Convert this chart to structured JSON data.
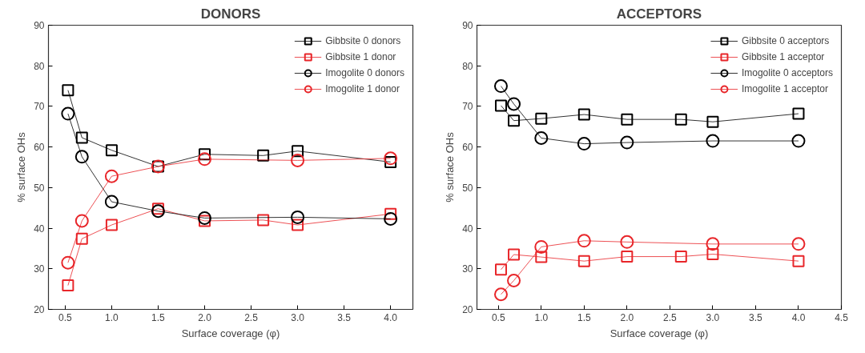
{
  "chart_data": [
    {
      "type": "line",
      "title": "DONORS",
      "xlabel": "Surface coverage (φ)",
      "ylabel": "% surface OHs",
      "xlim": [
        0.32,
        4.24
      ],
      "ylim": [
        20,
        90
      ],
      "xticks": [
        {
          "value": 0.5,
          "label": "0.5"
        },
        {
          "value": 1,
          "label": "1.0"
        },
        {
          "value": 1.5,
          "label": "1.5"
        },
        {
          "value": 2,
          "label": "2.0"
        },
        {
          "value": 2.5,
          "label": "2.5"
        },
        {
          "value": 3,
          "label": "3.0"
        },
        {
          "value": 3.5,
          "label": "3.5"
        },
        {
          "value": 4,
          "label": "4.0"
        }
      ],
      "yticks": [
        20,
        30,
        40,
        50,
        60,
        70,
        80,
        90
      ],
      "grid": false,
      "legend": "top right",
      "series": [
        {
          "name": "Gibbsite 0 donors",
          "color": "#000000",
          "marker": "square",
          "x": [
            0.53,
            0.68,
            1.0,
            1.5,
            2.0,
            2.63,
            3.0,
            4.0
          ],
          "values": [
            74,
            62.3,
            59.2,
            55.2,
            58.2,
            57.9,
            59,
            56.3
          ]
        },
        {
          "name": "Gibbsite 1 donor",
          "color": "#e8262a",
          "marker": "square",
          "x": [
            0.53,
            0.68,
            1.0,
            1.5,
            2.0,
            2.63,
            3.0,
            4.0
          ],
          "values": [
            25.9,
            37.4,
            40.8,
            44.8,
            41.8,
            42,
            40.8,
            43.5
          ]
        },
        {
          "name": "Imogolite 0 donors",
          "color": "#000000",
          "marker": "circle",
          "x": [
            0.53,
            0.68,
            1.0,
            1.5,
            2.0,
            3.0,
            4.0
          ],
          "values": [
            68.2,
            57.6,
            46.5,
            44.2,
            42.5,
            42.7,
            42.3
          ]
        },
        {
          "name": "Imogolite 1 donor",
          "color": "#e8262a",
          "marker": "circle",
          "x": [
            0.53,
            0.68,
            1.0,
            1.5,
            2.0,
            3.0,
            4.0
          ],
          "values": [
            31.5,
            41.8,
            52.8,
            55.2,
            57,
            56.7,
            57.2
          ]
        }
      ]
    },
    {
      "type": "line",
      "title": "ACCEPTORS",
      "xlabel": "Surface coverage (φ)",
      "ylabel": "% surface OHs",
      "xlim": [
        0.25,
        4.5
      ],
      "ylim": [
        20,
        90
      ],
      "xticks": [
        {
          "value": 0.5,
          "label": "0.5"
        },
        {
          "value": 1,
          "label": "1.0"
        },
        {
          "value": 1.5,
          "label": "1.5"
        },
        {
          "value": 2,
          "label": "2.0"
        },
        {
          "value": 2.5,
          "label": "2.5"
        },
        {
          "value": 3,
          "label": "3.0"
        },
        {
          "value": 3.5,
          "label": "3.5"
        },
        {
          "value": 4,
          "label": "4.0"
        },
        {
          "value": 4.5,
          "label": "4.5"
        }
      ],
      "yticks": [
        20,
        30,
        40,
        50,
        60,
        70,
        80,
        90
      ],
      "grid": false,
      "legend": "top right",
      "series": [
        {
          "name": "Gibbsite 0 acceptors",
          "color": "#000000",
          "marker": "square",
          "x": [
            0.53,
            0.68,
            1.0,
            1.5,
            2.0,
            2.63,
            3.0,
            4.0
          ],
          "values": [
            70.2,
            66.5,
            67,
            68,
            66.8,
            66.8,
            66.2,
            68.2
          ]
        },
        {
          "name": "Gibbsite 1 acceptor",
          "color": "#e8262a",
          "marker": "square",
          "x": [
            0.53,
            0.68,
            1.0,
            1.5,
            2.0,
            2.63,
            3.0,
            4.0
          ],
          "values": [
            29.8,
            33.5,
            32.9,
            31.9,
            33,
            33,
            33.6,
            31.9
          ]
        },
        {
          "name": "Imogolite 0 acceptors",
          "color": "#000000",
          "marker": "circle",
          "x": [
            0.53,
            0.68,
            1.0,
            1.5,
            2.0,
            3.0,
            4.0
          ],
          "values": [
            75,
            70.6,
            62.2,
            60.8,
            61.1,
            61.5,
            61.5
          ]
        },
        {
          "name": "Imogolite 1 acceptor",
          "color": "#e8262a",
          "marker": "circle",
          "x": [
            0.53,
            0.68,
            1.0,
            1.5,
            2.0,
            3.0,
            4.0
          ],
          "values": [
            23.7,
            27.1,
            35.4,
            36.9,
            36.6,
            36.1,
            36.1
          ]
        }
      ]
    }
  ]
}
